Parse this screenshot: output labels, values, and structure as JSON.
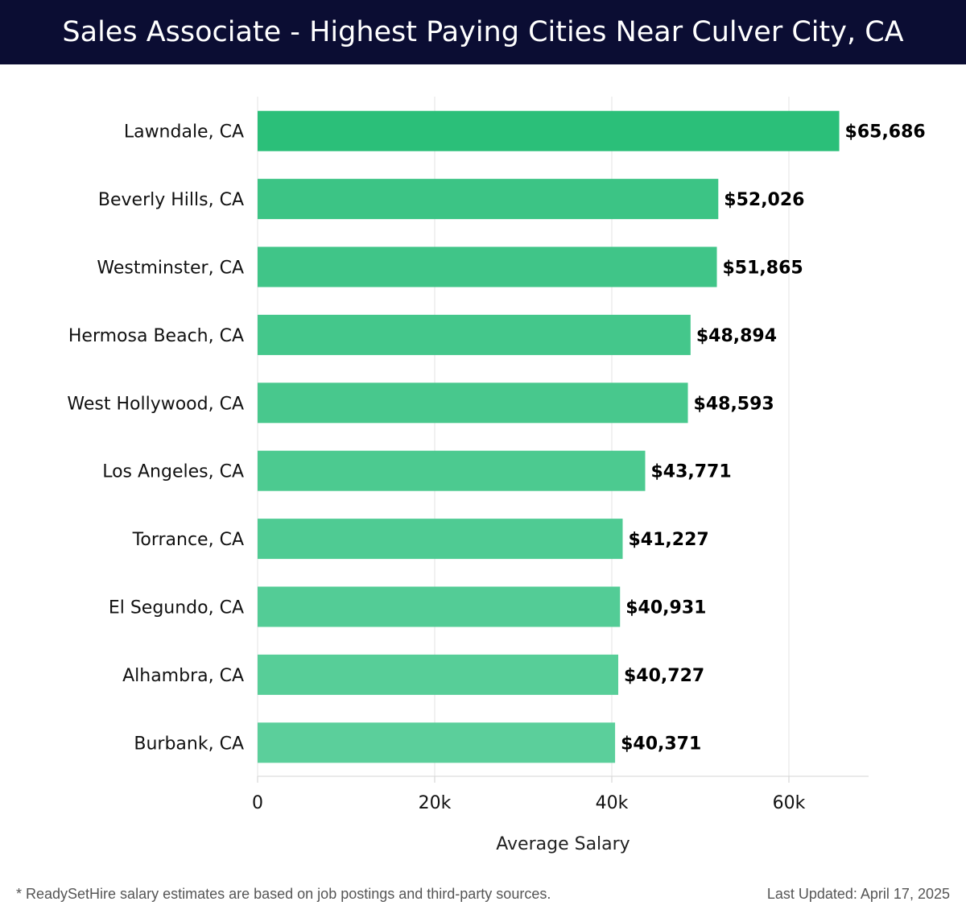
{
  "header": {
    "title": "Sales Associate - Highest Paying Cities Near Culver City, CA"
  },
  "chart_data": {
    "type": "bar",
    "orientation": "horizontal",
    "title": "Sales Associate - Highest Paying Cities Near Culver City, CA",
    "xlabel": "Average Salary",
    "ylabel": "",
    "xlim": [
      0,
      69000
    ],
    "xticks": [
      0,
      20000,
      40000,
      60000
    ],
    "xtick_labels": [
      "0",
      "20k",
      "40k",
      "60k"
    ],
    "grid": true,
    "categories": [
      "Lawndale, CA",
      "Beverly Hills, CA",
      "Westminster, CA",
      "Hermosa Beach, CA",
      "West Hollywood, CA",
      "Los Angeles, CA",
      "Torrance, CA",
      "El Segundo, CA",
      "Alhambra, CA",
      "Burbank, CA"
    ],
    "values": [
      65686,
      52026,
      51865,
      48894,
      48593,
      43771,
      41227,
      40931,
      40727,
      40371
    ],
    "data_labels": [
      "$65,686",
      "$52,026",
      "$51,865",
      "$48,894",
      "$48,593",
      "$43,771",
      "$41,227",
      "$40,931",
      "$40,727",
      "$40,371"
    ],
    "colors": {
      "top_bar": "#2bbf79",
      "bar_start": "#3cc485",
      "bar_end": "#5bcf9b"
    }
  },
  "footer": {
    "note": "* ReadySetHire salary estimates are based on job postings and third-party sources.",
    "updated": "Last Updated: April 17, 2025"
  }
}
